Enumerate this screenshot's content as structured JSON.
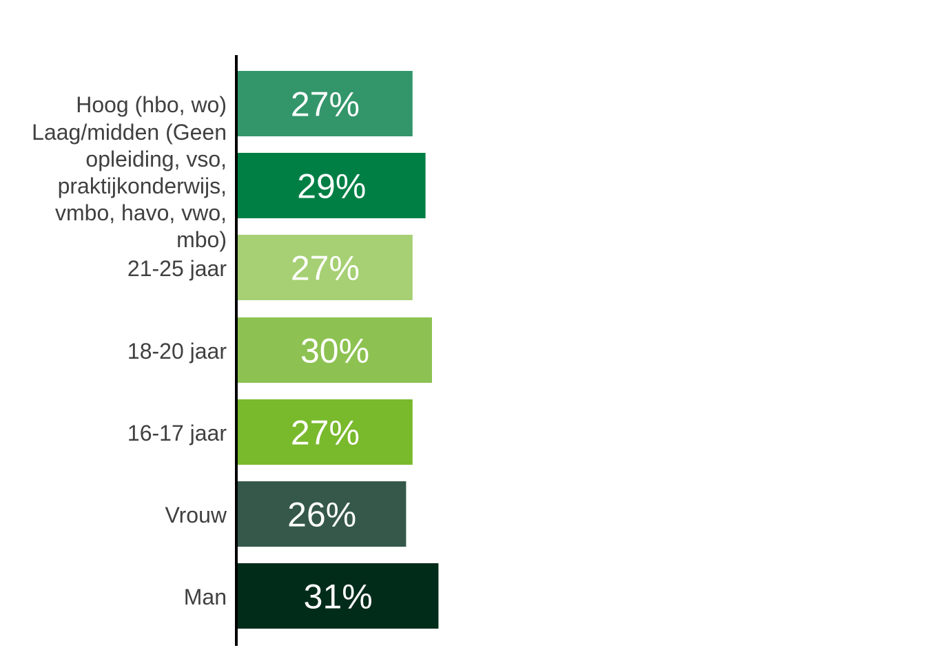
{
  "chart_data": {
    "type": "bar",
    "orientation": "horizontal",
    "categories": [
      "Hoog (hbo, wo)",
      "Laag/midden (Geen opleiding, vso, praktijkonderwijs, vmbo, havo, vwo, mbo)",
      "21-25 jaar",
      "18-20 jaar",
      "16-17 jaar",
      "Vrouw",
      "Man"
    ],
    "category_lines": [
      [
        "Hoog (hbo, wo)"
      ],
      [
        "Laag/midden (Geen",
        "opleiding, vso,",
        "praktijkonderwijs,",
        "vmbo, havo, vwo,",
        "mbo)"
      ],
      [
        "21-25 jaar"
      ],
      [
        "18-20 jaar"
      ],
      [
        "16-17 jaar"
      ],
      [
        "Vrouw"
      ],
      [
        "Man"
      ]
    ],
    "values": [
      27,
      29,
      27,
      30,
      27,
      26,
      31
    ],
    "value_labels": [
      "27%",
      "29%",
      "27%",
      "30%",
      "27%",
      "26%",
      "31%"
    ],
    "colors": [
      "#33966b",
      "#007f45",
      "#a6d073",
      "#8dc252",
      "#79b92c",
      "#35584a",
      "#022c1a"
    ],
    "title": "",
    "xlabel": "",
    "ylabel": "",
    "xlim": [
      0,
      100
    ],
    "grid": false,
    "legend": "none"
  }
}
